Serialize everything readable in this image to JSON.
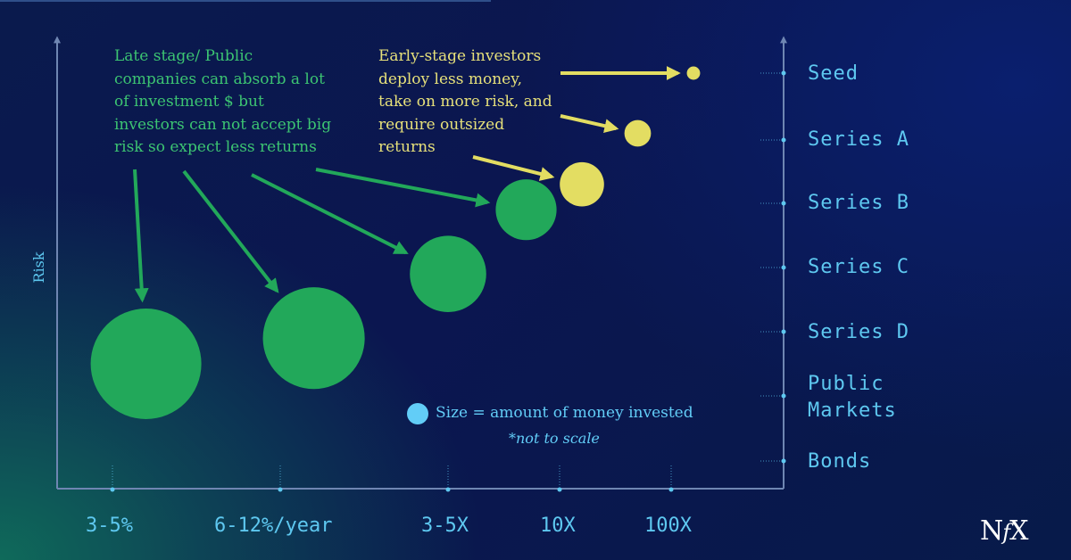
{
  "chart_data": {
    "type": "scatter",
    "title": "",
    "ylabel": "Risk",
    "xlabel": "",
    "x_categories": [
      "3-5%",
      "6-12%/year",
      "3-5X",
      "10X",
      "100X"
    ],
    "y_categories": [
      "Bonds",
      "Public\nMarkets",
      "Series D",
      "Series C",
      "Series B",
      "Series A",
      "Seed"
    ],
    "series": [
      {
        "group": "late",
        "color": "#22a85a",
        "points": [
          {
            "x": 0.2,
            "y": 1.5,
            "size": 1.0
          },
          {
            "x": 1.2,
            "y": 1.9,
            "size": 0.92
          },
          {
            "x": 2.0,
            "y": 2.9,
            "size": 0.69
          },
          {
            "x": 2.7,
            "y": 3.9,
            "size": 0.55
          }
        ]
      },
      {
        "group": "early",
        "color": "#e3dd62",
        "points": [
          {
            "x": 3.2,
            "y": 4.3,
            "size": 0.4
          },
          {
            "x": 3.7,
            "y": 5.1,
            "size": 0.24
          },
          {
            "x": 4.2,
            "y": 6.0,
            "size": 0.12
          }
        ]
      }
    ],
    "legend": "bottom-center",
    "grid": false
  },
  "annotations": {
    "late_stage": "Late stage/ Public\ncompanies can absorb a lot\nof investment $ but\ninvestors can not accept big\nrisk so expect less returns",
    "early_stage": "Early-stage investors\ndeploy less money,\ntake on more risk, and\nrequire outsized\nreturns"
  },
  "legend": {
    "size_label": "Size = amount of money invested",
    "scale_note": "*not to scale"
  },
  "brand": {
    "logo_n": "N",
    "logo_f": "f",
    "logo_x": "X"
  },
  "colors": {
    "axis": "#6f86b2",
    "label": "#5ec8f0",
    "green": "#22a85a",
    "green_text": "#3cc472",
    "yellow": "#e3dd62",
    "legend": "#62cdf7"
  }
}
